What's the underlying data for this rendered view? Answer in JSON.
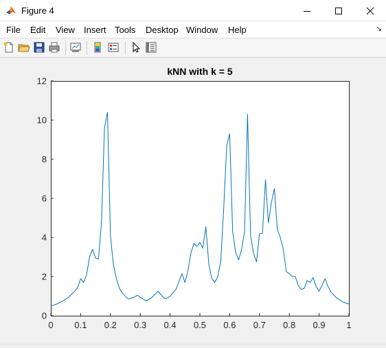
{
  "window": {
    "title": "Figure 4",
    "minimize_icon": "minimize-icon",
    "maximize_icon": "maximize-icon",
    "close_icon": "close-icon"
  },
  "menu": {
    "items": [
      "File",
      "Edit",
      "View",
      "Insert",
      "Tools",
      "Desktop",
      "Window",
      "Help"
    ]
  },
  "toolbar": {
    "icons": [
      "new-figure-icon",
      "open-file-icon",
      "save-icon",
      "print-icon",
      "link-plot-icon",
      "insert-colorbar-icon",
      "insert-legend-icon",
      "edit-plot-icon",
      "property-inspector-icon"
    ]
  },
  "colors": {
    "line": "#0072bd",
    "axes_bg": "#ffffff",
    "figure_bg": "#f0f0f0"
  },
  "chart_data": {
    "type": "line",
    "title": "kNN with k = 5",
    "xlabel": "",
    "ylabel": "",
    "xlim": [
      0,
      1
    ],
    "ylim": [
      0,
      12
    ],
    "xticks": [
      "0",
      "0.1",
      "0.2",
      "0.3",
      "0.4",
      "0.5",
      "0.6",
      "0.7",
      "0.8",
      "0.9",
      "1"
    ],
    "yticks": [
      "0",
      "2",
      "4",
      "6",
      "8",
      "10",
      "12"
    ],
    "grid": false,
    "x": [
      0,
      0.02,
      0.04,
      0.06,
      0.08,
      0.09,
      0.1,
      0.11,
      0.12,
      0.13,
      0.14,
      0.15,
      0.16,
      0.17,
      0.18,
      0.19,
      0.2,
      0.21,
      0.22,
      0.23,
      0.24,
      0.26,
      0.28,
      0.29,
      0.3,
      0.32,
      0.34,
      0.36,
      0.38,
      0.39,
      0.4,
      0.42,
      0.44,
      0.45,
      0.46,
      0.47,
      0.48,
      0.49,
      0.5,
      0.51,
      0.52,
      0.53,
      0.54,
      0.55,
      0.56,
      0.57,
      0.58,
      0.59,
      0.6,
      0.61,
      0.62,
      0.63,
      0.64,
      0.65,
      0.66,
      0.67,
      0.68,
      0.69,
      0.7,
      0.71,
      0.72,
      0.73,
      0.74,
      0.75,
      0.76,
      0.77,
      0.78,
      0.79,
      0.8,
      0.81,
      0.82,
      0.83,
      0.84,
      0.85,
      0.86,
      0.87,
      0.88,
      0.89,
      0.9,
      0.91,
      0.92,
      0.93,
      0.94,
      0.96,
      0.98,
      1
    ],
    "y": [
      0.5,
      0.6,
      0.75,
      0.95,
      1.25,
      1.45,
      1.9,
      1.7,
      2.1,
      3.0,
      3.4,
      2.95,
      2.9,
      4.8,
      9.6,
      10.4,
      4.1,
      2.6,
      1.9,
      1.4,
      1.15,
      0.85,
      0.95,
      1.05,
      0.95,
      0.75,
      0.95,
      1.25,
      0.9,
      0.9,
      1.0,
      1.35,
      2.15,
      1.7,
      2.3,
      3.2,
      3.7,
      3.55,
      3.75,
      3.45,
      4.55,
      2.65,
      1.9,
      1.7,
      2.0,
      2.8,
      5.5,
      8.7,
      9.3,
      4.3,
      3.25,
      2.85,
      3.4,
      4.3,
      10.3,
      4.1,
      3.2,
      2.75,
      4.2,
      4.2,
      6.95,
      4.75,
      5.8,
      6.5,
      4.4,
      4.0,
      3.4,
      2.25,
      2.15,
      2.0,
      2.0,
      1.55,
      1.35,
      1.4,
      1.8,
      1.7,
      1.95,
      1.5,
      1.25,
      1.55,
      1.9,
      1.5,
      1.2,
      0.9,
      0.7,
      0.6
    ]
  }
}
